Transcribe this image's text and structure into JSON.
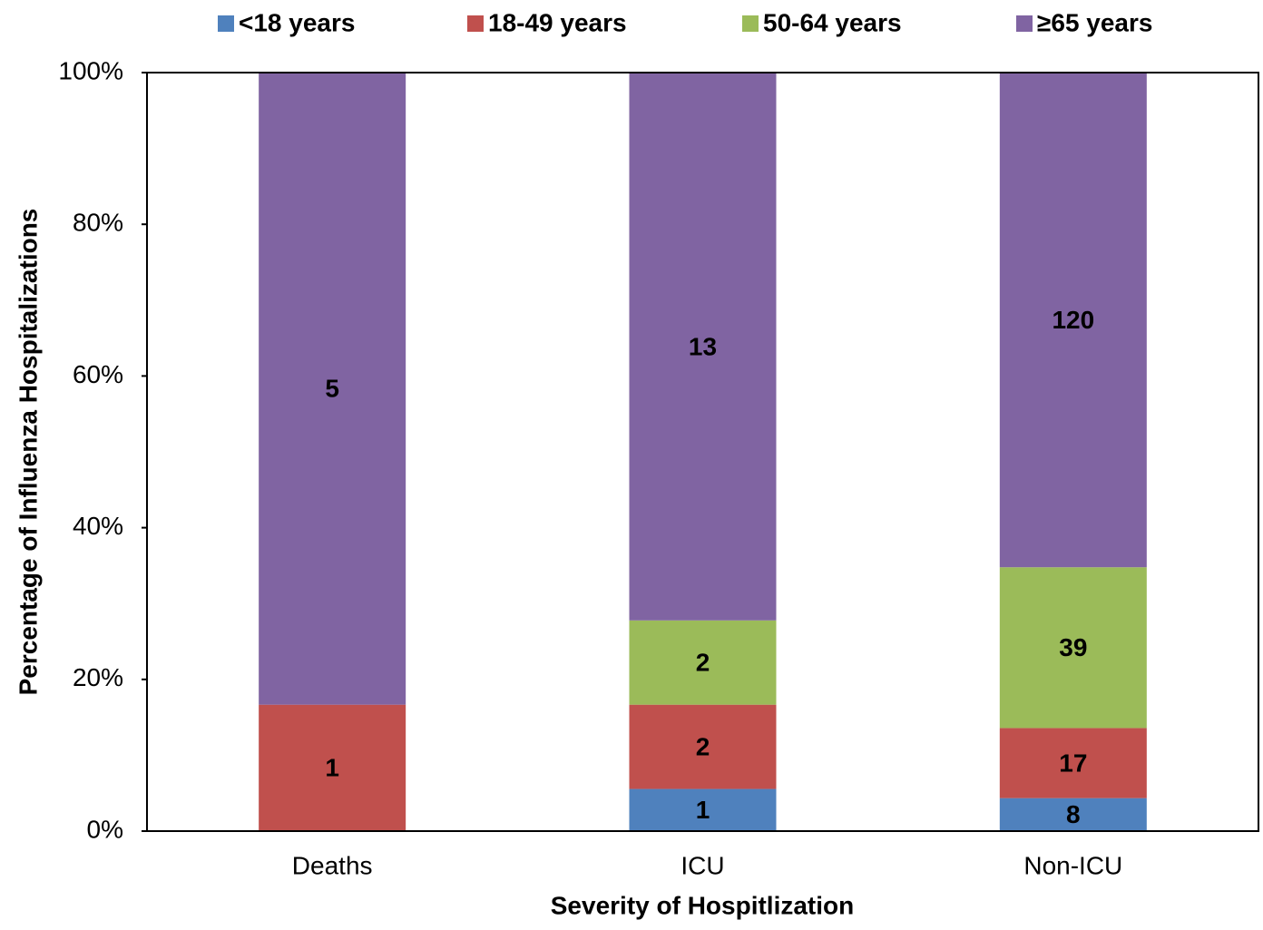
{
  "chart_data": {
    "type": "bar",
    "stacked": true,
    "normalize": true,
    "y_label": "Percentage of Influenza Hospitalizations",
    "x_label": "Severity of Hospitlization",
    "categories": [
      "Deaths",
      "ICU",
      "Non-ICU"
    ],
    "series": [
      {
        "name": "<18 years",
        "color": "#4f81bd",
        "values": [
          null,
          1,
          8
        ]
      },
      {
        "name": "18-49 years",
        "color": "#c0504d",
        "values": [
          1,
          2,
          17
        ]
      },
      {
        "name": "50-64 years",
        "color": "#9bbb59",
        "values": [
          null,
          2,
          39
        ]
      },
      {
        "name": "≥65 years",
        "color": "#8064a2",
        "values": [
          5,
          13,
          120
        ]
      }
    ],
    "ylim": [
      0,
      100
    ],
    "yticks": [
      {
        "value": 0,
        "label": "0%"
      },
      {
        "value": 20,
        "label": "20%"
      },
      {
        "value": 40,
        "label": "40%"
      },
      {
        "value": 60,
        "label": "60%"
      },
      {
        "value": 80,
        "label": "80%"
      },
      {
        "value": 100,
        "label": "100%"
      }
    ],
    "grid": false,
    "legend": "top"
  }
}
